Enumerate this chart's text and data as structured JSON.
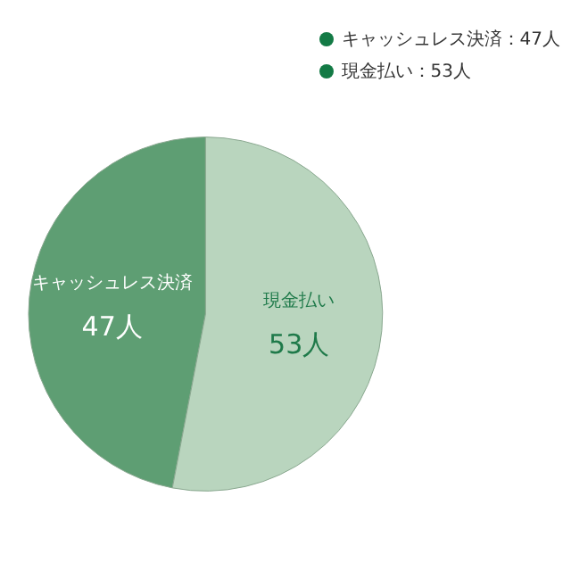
{
  "chart_data": {
    "type": "pie",
    "categories": [
      "キャッシュレス決済",
      "現金払い"
    ],
    "values": [
      47,
      53
    ],
    "value_labels": [
      "47人",
      "53人"
    ],
    "colors": [
      "#5e9e73",
      "#b9d5be"
    ],
    "annotations": [
      "キャッシュレス決済：47人",
      "現金払い：53人"
    ]
  }
}
